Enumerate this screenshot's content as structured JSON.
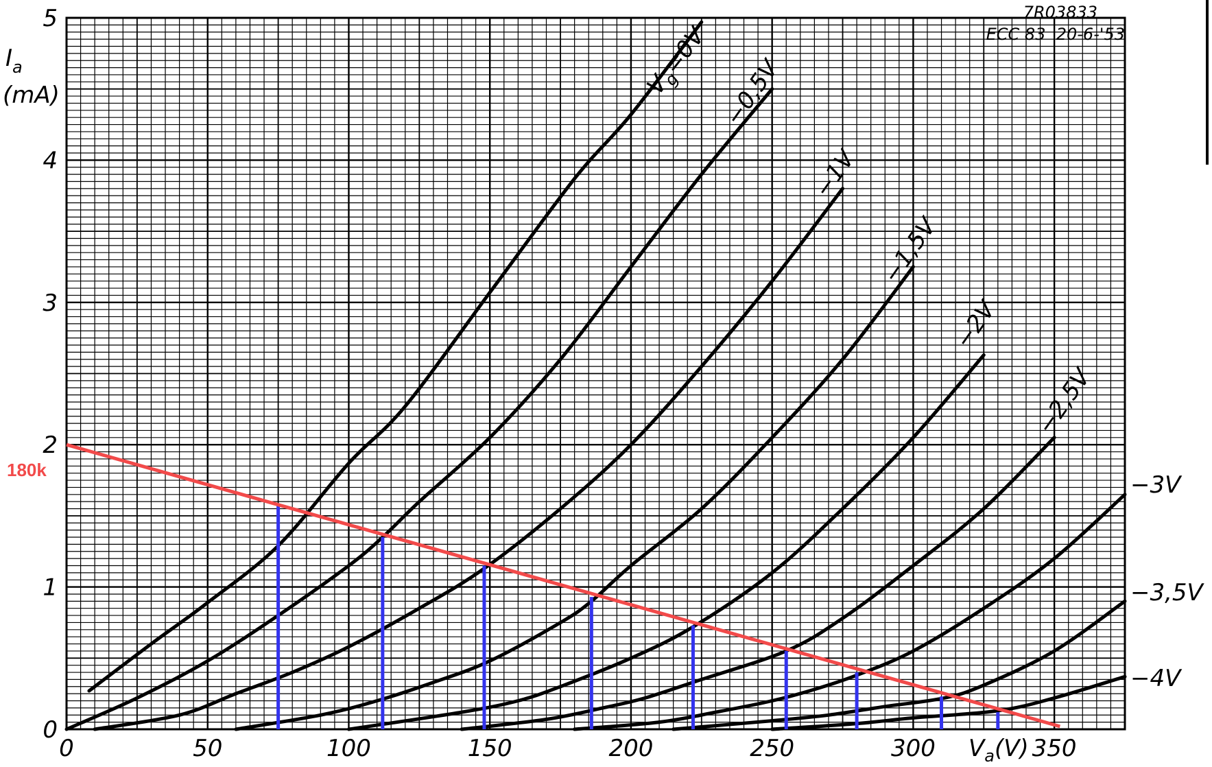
{
  "chart_data": {
    "type": "line",
    "id_code": "7R03833",
    "tube_stamp": "ECC 83  20-6-'53",
    "ylabel_symbol": "I",
    "ylabel_sub": "a",
    "ylabel_unit": "(mA)",
    "xlabel_symbol": "V",
    "xlabel_sub": "a",
    "xlabel_unit": "(V)",
    "xlim": [
      0,
      375
    ],
    "ylim": [
      0,
      5
    ],
    "grid": true,
    "x_ticks": [
      {
        "value": 0,
        "label": "0"
      },
      {
        "value": 50,
        "label": "50"
      },
      {
        "value": 100,
        "label": "100"
      },
      {
        "value": 150,
        "label": "150"
      },
      {
        "value": 200,
        "label": "200"
      },
      {
        "value": 250,
        "label": "250"
      },
      {
        "value": 300,
        "label": "300"
      },
      {
        "value": 350,
        "label": "350"
      }
    ],
    "y_ticks": [
      {
        "value": 0,
        "label": "0"
      },
      {
        "value": 1,
        "label": "1"
      },
      {
        "value": 2,
        "label": "2"
      },
      {
        "value": 3,
        "label": "3"
      },
      {
        "value": 4,
        "label": "4"
      },
      {
        "value": 5,
        "label": "5"
      }
    ],
    "series": [
      {
        "name": "Vg=0V",
        "label_main": "V",
        "label_sub": "g",
        "label_tail": "=0V",
        "x": [
          8,
          30,
          50,
          75,
          100,
          120,
          150,
          180,
          200,
          225
        ],
        "y": [
          0.27,
          0.6,
          0.89,
          1.29,
          1.87,
          2.27,
          3.07,
          3.87,
          4.32,
          4.97
        ]
      },
      {
        "name": "-0.5V",
        "label": "−0,5V",
        "x": [
          0,
          25,
          50,
          75,
          100,
          112,
          125,
          150,
          175,
          200,
          225,
          250
        ],
        "y": [
          0,
          0.22,
          0.48,
          0.8,
          1.15,
          1.35,
          1.6,
          2.05,
          2.6,
          3.25,
          3.9,
          4.5
        ]
      },
      {
        "name": "-1V",
        "label": "−1V",
        "x": [
          10,
          40,
          60,
          80,
          100,
          125,
          148,
          175,
          200,
          225,
          250,
          275
        ],
        "y": [
          0,
          0.1,
          0.25,
          0.4,
          0.58,
          0.85,
          1.13,
          1.55,
          2.0,
          2.55,
          3.15,
          3.8
        ]
      },
      {
        "name": "-1.5V",
        "label": "−1,5V",
        "x": [
          60,
          90,
          110,
          130,
          150,
          175,
          186,
          200,
          225,
          250,
          275,
          300
        ],
        "y": [
          0,
          0.1,
          0.2,
          0.33,
          0.48,
          0.75,
          0.9,
          1.15,
          1.55,
          2.05,
          2.6,
          3.25
        ]
      },
      {
        "name": "-2V",
        "label": "−2V",
        "x": [
          100,
          140,
          160,
          175,
          200,
          222,
          250,
          275,
          300,
          325
        ],
        "y": [
          0,
          0.12,
          0.2,
          0.3,
          0.5,
          0.72,
          1.1,
          1.55,
          2.05,
          2.63
        ]
      },
      {
        "name": "-2.5V",
        "label": "−2,5V",
        "x": [
          140,
          170,
          190,
          205,
          225,
          255,
          275,
          300,
          325,
          350
        ],
        "y": [
          0,
          0.07,
          0.15,
          0.22,
          0.35,
          0.55,
          0.78,
          1.15,
          1.55,
          2.05
        ]
      },
      {
        "name": "-3V",
        "label": "−3V",
        "x": [
          180,
          210,
          230,
          250,
          265,
          280,
          300,
          325,
          350,
          375
        ],
        "y": [
          0,
          0.05,
          0.12,
          0.2,
          0.28,
          0.38,
          0.55,
          0.85,
          1.2,
          1.65
        ]
      },
      {
        "name": "-3.5V",
        "label": "−3,5V",
        "x": [
          215,
          250,
          270,
          290,
          311,
          325,
          350,
          375
        ],
        "y": [
          0,
          0.06,
          0.1,
          0.16,
          0.22,
          0.31,
          0.55,
          0.9
        ]
      },
      {
        "name": "-4V",
        "label": "−4V",
        "x": [
          250,
          280,
          300,
          330,
          350,
          375
        ],
        "y": [
          0,
          0.04,
          0.08,
          0.13,
          0.22,
          0.37
        ]
      }
    ],
    "load_line": {
      "label": "180k",
      "color": "#f24a4a",
      "x": [
        0,
        352
      ],
      "y": [
        2.0,
        0.02
      ]
    },
    "intersection_lines": {
      "color": "#3333ee",
      "points": [
        {
          "x": 75,
          "y": 1.58
        },
        {
          "x": 112,
          "y": 1.35
        },
        {
          "x": 148,
          "y": 1.15
        },
        {
          "x": 186,
          "y": 0.93
        },
        {
          "x": 222,
          "y": 0.73
        },
        {
          "x": 255,
          "y": 0.55
        },
        {
          "x": 280,
          "y": 0.4
        },
        {
          "x": 310,
          "y": 0.23
        },
        {
          "x": 330,
          "y": 0.12
        }
      ]
    }
  }
}
